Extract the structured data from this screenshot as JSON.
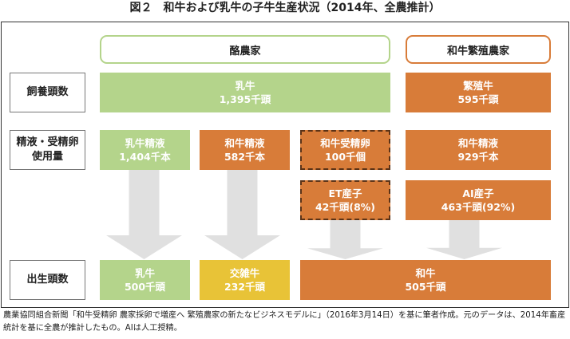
{
  "title": "図２　和牛および乳牛の子牛生産状況（2014年、全農推計）",
  "row_labels": {
    "herd": "飼養頭数",
    "semen_line1": "精液・受精卵",
    "semen_line2": "使用量",
    "births": "出生頭数"
  },
  "headers": {
    "dairy": "酪農家",
    "wagyu_breeding": "和牛繁殖農家"
  },
  "boxes": {
    "dairy_cows": {
      "name": "乳牛",
      "value": "1,395千頭"
    },
    "breeding_cows": {
      "name": "繁殖牛",
      "value": "595千頭"
    },
    "dairy_semen": {
      "name": "乳牛精液",
      "value": "1,404千本"
    },
    "wagyu_semen_dairy": {
      "name": "和牛精液",
      "value": "582千本"
    },
    "wagyu_embryo": {
      "name": "和牛受精卵",
      "value": "100千個"
    },
    "wagyu_semen_breeding": {
      "name": "和牛精液",
      "value": "929千本"
    },
    "et_calves": {
      "name": "ET産子",
      "value": "42千頭(8%)"
    },
    "ai_calves": {
      "name": "AI産子",
      "value": "463千頭(92%)"
    },
    "born_dairy": {
      "name": "乳牛",
      "value": "500千頭"
    },
    "born_cross": {
      "name": "交雑牛",
      "value": "232千頭"
    },
    "born_wagyu": {
      "name": "和牛",
      "value": "505千頭"
    }
  },
  "note": "農業協同組合新聞「和牛受精卵 農家採卵で増産へ 繁殖農家の新たなビジネスモデルに」（2016年3月14日）を基に筆者作成。元のデータは、2014年畜産統計を基に全農が推計したもの。AIは人工授精。",
  "colors": {
    "green": "#b4d48b",
    "orange": "#d87c39",
    "yellow": "#e8c337",
    "arrow_gray": "#e0e0e0",
    "dashed_border": "#5b3317"
  }
}
